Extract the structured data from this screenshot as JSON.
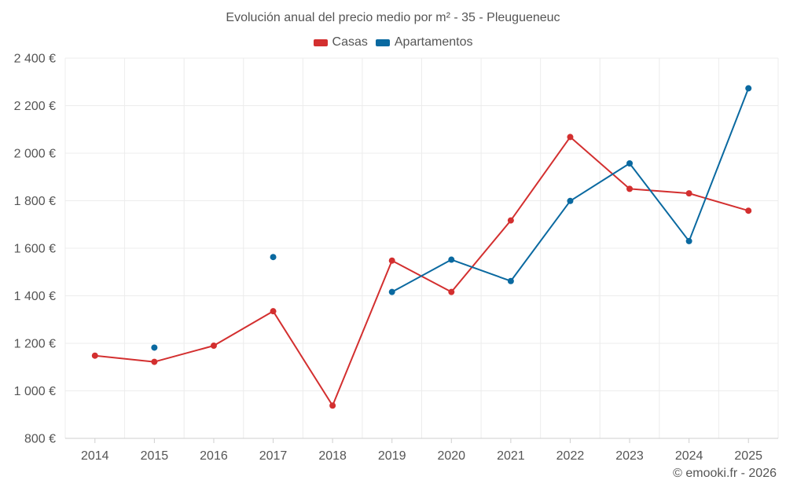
{
  "chart_data": {
    "type": "line",
    "title": "Evolución anual del precio medio por m² - 35 - Pleugueneuc",
    "xlabel": "",
    "ylabel": "",
    "categories": [
      "2014",
      "2015",
      "2016",
      "2017",
      "2018",
      "2019",
      "2020",
      "2021",
      "2022",
      "2023",
      "2024",
      "2025"
    ],
    "ylim": [
      800,
      2400
    ],
    "yticks": [
      800,
      1000,
      1200,
      1400,
      1600,
      1800,
      2000,
      2200,
      2400
    ],
    "ytick_labels": [
      "800 €",
      "1 000 €",
      "1 200 €",
      "1 400 €",
      "1 600 €",
      "1 800 €",
      "2 000 €",
      "2 200 €",
      "2 400 €"
    ],
    "grid": true,
    "legend_position": "top-center",
    "series": [
      {
        "name": "Casas",
        "color": "#d32f2f",
        "values": [
          1148,
          1122,
          1190,
          1335,
          938,
          1548,
          1416,
          1717,
          2068,
          1850,
          1831,
          1758
        ]
      },
      {
        "name": "Apartamentos",
        "color": "#0a69a0",
        "values": [
          null,
          1182,
          null,
          1563,
          null,
          1416,
          1552,
          1462,
          1799,
          1957,
          1630,
          2273
        ]
      }
    ]
  },
  "credit": "© emooki.fr - 2026"
}
